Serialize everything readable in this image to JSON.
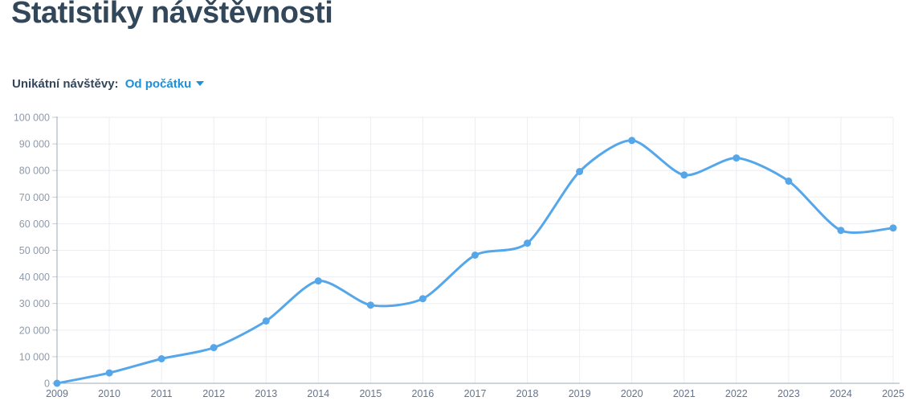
{
  "page": {
    "title": "Statistiky návštěvnosti"
  },
  "filter": {
    "label": "Unikátní návštěvy:",
    "selected": "Od počátku",
    "caret_icon_name": "caret-down-icon"
  },
  "colors": {
    "title_text": "#33475b",
    "link": "#1b90da",
    "line": "#55a7ea",
    "grid": "#ebedf2",
    "axis": "#9fa8b6",
    "tick": "#c6ccd6",
    "y_label": "#8e99ab",
    "x_label": "#64748f"
  },
  "chart_data": {
    "type": "line",
    "title": "",
    "xlabel": "",
    "ylabel": "",
    "legend": "none",
    "grid": true,
    "marker": "circle",
    "series_name": "Unikátní návštěvy",
    "categories": [
      "2009",
      "2010",
      "2011",
      "2012",
      "2013",
      "2014",
      "2015",
      "2016",
      "2017",
      "2018",
      "2019",
      "2020",
      "2021",
      "2022",
      "2023",
      "2024",
      "2025"
    ],
    "values": [
      0,
      3900,
      9200,
      13400,
      23400,
      38500,
      29400,
      31800,
      48200,
      52700,
      79600,
      91300,
      78300,
      84700,
      76000,
      57500,
      58400
    ],
    "ylim": [
      0,
      100000
    ],
    "y_ticks": [
      0,
      10000,
      20000,
      30000,
      40000,
      50000,
      60000,
      70000,
      80000,
      90000,
      100000
    ],
    "y_tick_labels": [
      "0",
      "10 000",
      "20 000",
      "30 000",
      "40 000",
      "50 000",
      "60 000",
      "70 000",
      "80 000",
      "90 000",
      "100 000"
    ]
  }
}
